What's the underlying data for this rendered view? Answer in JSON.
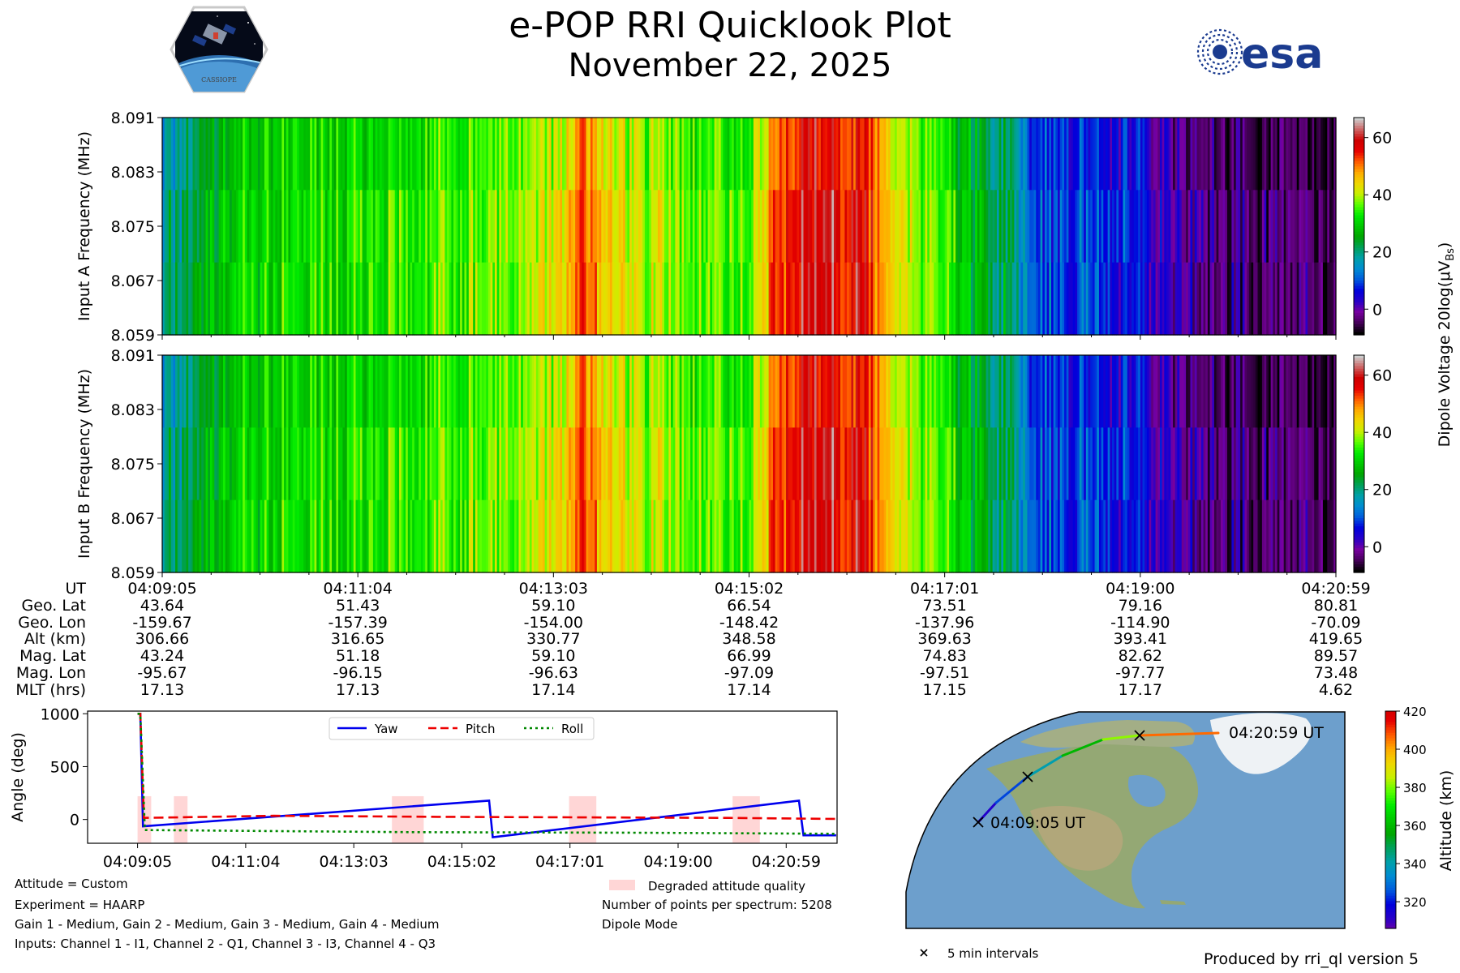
{
  "title": "e-POP RRI Quicklook Plot",
  "date": "November 22, 2025",
  "logos": {
    "mission": "CASSIOPE",
    "agency": "esa"
  },
  "chart_data": [
    {
      "type": "heatmap",
      "name": "Input A spectrogram",
      "ylabel": "Input A Frequency (MHz)",
      "yticks": [
        "8.091",
        "8.083",
        "8.075",
        "8.067",
        "8.059"
      ],
      "ylim": [
        8.059,
        8.091
      ],
      "time_range": [
        "04:09:05",
        "04:20:59"
      ],
      "colormap": "nipy_spectral",
      "clim": [
        -9,
        67
      ],
      "colorbar_ticks": [
        "60",
        "40",
        "20",
        "0"
      ],
      "intensity_profile": [
        {
          "t": 0.0,
          "v": 18
        },
        {
          "t": 0.02,
          "v": 22
        },
        {
          "t": 0.05,
          "v": 28
        },
        {
          "t": 0.1,
          "v": 32
        },
        {
          "t": 0.2,
          "v": 34
        },
        {
          "t": 0.3,
          "v": 38
        },
        {
          "t": 0.34,
          "v": 42
        },
        {
          "t": 0.36,
          "v": 54
        },
        {
          "t": 0.38,
          "v": 43
        },
        {
          "t": 0.45,
          "v": 37
        },
        {
          "t": 0.5,
          "v": 36
        },
        {
          "t": 0.52,
          "v": 50
        },
        {
          "t": 0.54,
          "v": 60
        },
        {
          "t": 0.6,
          "v": 58
        },
        {
          "t": 0.62,
          "v": 45
        },
        {
          "t": 0.68,
          "v": 30
        },
        {
          "t": 0.73,
          "v": 20
        },
        {
          "t": 0.74,
          "v": 11
        },
        {
          "t": 0.82,
          "v": 7
        },
        {
          "t": 0.84,
          "v": 5
        },
        {
          "t": 0.86,
          "v": 2
        },
        {
          "t": 0.9,
          "v": -2
        },
        {
          "t": 1.0,
          "v": -5
        }
      ]
    },
    {
      "type": "heatmap",
      "name": "Input B spectrogram",
      "ylabel": "Input B Frequency (MHz)",
      "yticks": [
        "8.091",
        "8.083",
        "8.075",
        "8.067",
        "8.059"
      ],
      "ylim": [
        8.059,
        8.091
      ],
      "time_range": [
        "04:09:05",
        "04:20:59"
      ],
      "colormap": "nipy_spectral",
      "clim": [
        -9,
        67
      ],
      "colorbar_ticks": [
        "60",
        "40",
        "20",
        "0"
      ],
      "colorbar_label": "Dipole Voltage 20log(μV",
      "colorbar_label_sub": "Bs",
      "colorbar_label_end": ")",
      "intensity_profile": [
        {
          "t": 0.0,
          "v": 18
        },
        {
          "t": 0.02,
          "v": 22
        },
        {
          "t": 0.05,
          "v": 28
        },
        {
          "t": 0.1,
          "v": 32
        },
        {
          "t": 0.2,
          "v": 34
        },
        {
          "t": 0.3,
          "v": 38
        },
        {
          "t": 0.34,
          "v": 42
        },
        {
          "t": 0.36,
          "v": 54
        },
        {
          "t": 0.38,
          "v": 43
        },
        {
          "t": 0.45,
          "v": 37
        },
        {
          "t": 0.5,
          "v": 36
        },
        {
          "t": 0.52,
          "v": 50
        },
        {
          "t": 0.54,
          "v": 60
        },
        {
          "t": 0.6,
          "v": 58
        },
        {
          "t": 0.62,
          "v": 45
        },
        {
          "t": 0.68,
          "v": 30
        },
        {
          "t": 0.73,
          "v": 20
        },
        {
          "t": 0.74,
          "v": 11
        },
        {
          "t": 0.82,
          "v": 7
        },
        {
          "t": 0.84,
          "v": 5
        },
        {
          "t": 0.86,
          "v": 2
        },
        {
          "t": 0.9,
          "v": -2
        },
        {
          "t": 1.0,
          "v": -5
        }
      ]
    },
    {
      "type": "line",
      "name": "Attitude",
      "ylabel": "Angle (deg)",
      "yticks": [
        "1000",
        "500",
        "0"
      ],
      "ylim": [
        -225,
        1025
      ],
      "xticks": [
        "04:09:05",
        "04:11:04",
        "04:13:03",
        "04:15:02",
        "04:17:01",
        "04:19:00",
        "04:20:59"
      ],
      "x_range_seconds": [
        -55,
        770
      ],
      "legend_position": "upper-center",
      "series": [
        {
          "name": "Yaw",
          "color": "#0000ee",
          "dash": "solid",
          "points": [
            [
              0,
              1000
            ],
            [
              3,
              1000
            ],
            [
              6,
              -65
            ],
            [
              387,
              178
            ],
            [
              391,
              -168
            ],
            [
              728,
              178
            ],
            [
              733,
              -150
            ],
            [
              769,
              -150
            ]
          ]
        },
        {
          "name": "Pitch",
          "color": "#ee0000",
          "dash": "dashed",
          "points": [
            [
              0,
              1000
            ],
            [
              3,
              1000
            ],
            [
              7,
              15
            ],
            [
              150,
              35
            ],
            [
              330,
              25
            ],
            [
              500,
              20
            ],
            [
              650,
              15
            ],
            [
              769,
              5
            ]
          ]
        },
        {
          "name": "Roll",
          "color": "#008800",
          "dash": "dotted",
          "points": [
            [
              0,
              1000
            ],
            [
              3,
              1000
            ],
            [
              8,
              -100
            ],
            [
              300,
              -120
            ],
            [
              550,
              -125
            ],
            [
              769,
              -135
            ]
          ]
        }
      ],
      "degraded_regions": [
        [
          0,
          15
        ],
        [
          40,
          55
        ],
        [
          280,
          315
        ],
        [
          475,
          505
        ],
        [
          655,
          685
        ]
      ],
      "degraded_label": "Degraded attitude quality",
      "degraded_color": "#ffd6d6"
    },
    {
      "type": "scatter",
      "name": "Ground track",
      "projection": "orthographic",
      "colorbar_label": "Altitude (km)",
      "colorbar_ticks": [
        "420",
        "400",
        "380",
        "360",
        "340",
        "320"
      ],
      "clim": [
        306,
        420
      ],
      "track": [
        {
          "lat": 43.64,
          "lon": -159.67,
          "alt": 306.66
        },
        {
          "lat": 51.43,
          "lon": -157.39,
          "alt": 316.65
        },
        {
          "lat": 59.1,
          "lon": -154.0,
          "alt": 330.77
        },
        {
          "lat": 66.54,
          "lon": -148.42,
          "alt": 348.58
        },
        {
          "lat": 73.51,
          "lon": -137.96,
          "alt": 369.63
        },
        {
          "lat": 79.16,
          "lon": -114.9,
          "alt": 393.41
        },
        {
          "lat": 80.81,
          "lon": -70.09,
          "alt": 419.65
        }
      ],
      "start_label": "04:09:05 UT",
      "end_label": "04:20:59 UT",
      "marker_legend": "5 min intervals"
    }
  ],
  "ephemeris": {
    "labels": [
      "UT",
      "Geo. Lat",
      "Geo. Lon",
      "Alt (km)",
      "Mag. Lat",
      "Mag. Lon",
      "MLT (hrs)"
    ],
    "columns": [
      [
        "04:09:05",
        "43.64",
        "-159.67",
        "306.66",
        "43.24",
        "-95.67",
        "17.13"
      ],
      [
        "04:11:04",
        "51.43",
        "-157.39",
        "316.65",
        "51.18",
        "-96.15",
        "17.13"
      ],
      [
        "04:13:03",
        "59.10",
        "-154.00",
        "330.77",
        "59.10",
        "-96.63",
        "17.14"
      ],
      [
        "04:15:02",
        "66.54",
        "-148.42",
        "348.58",
        "66.99",
        "-97.09",
        "17.14"
      ],
      [
        "04:17:01",
        "73.51",
        "-137.96",
        "369.63",
        "74.83",
        "-97.51",
        "17.15"
      ],
      [
        "04:19:00",
        "79.16",
        "-114.90",
        "393.41",
        "82.62",
        "-97.77",
        "17.17"
      ],
      [
        "04:20:59",
        "80.81",
        "-70.09",
        "419.65",
        "89.57",
        "73.48",
        "4.62"
      ]
    ]
  },
  "notes": {
    "attitude": "Attitude = Custom",
    "experiment": "Experiment = HAARP",
    "gains": "Gain 1 - Medium, Gain 2 - Medium, Gain 3 - Medium, Gain 4 - Medium",
    "inputs": "Inputs: Channel 1 - I1, Channel 2 - Q1, Channel 3 - I3, Channel 4 - Q3",
    "points": "Number of points per spectrum: 5208",
    "mode": "Dipole Mode",
    "produced_by": "Produced by rri_ql version 5"
  }
}
